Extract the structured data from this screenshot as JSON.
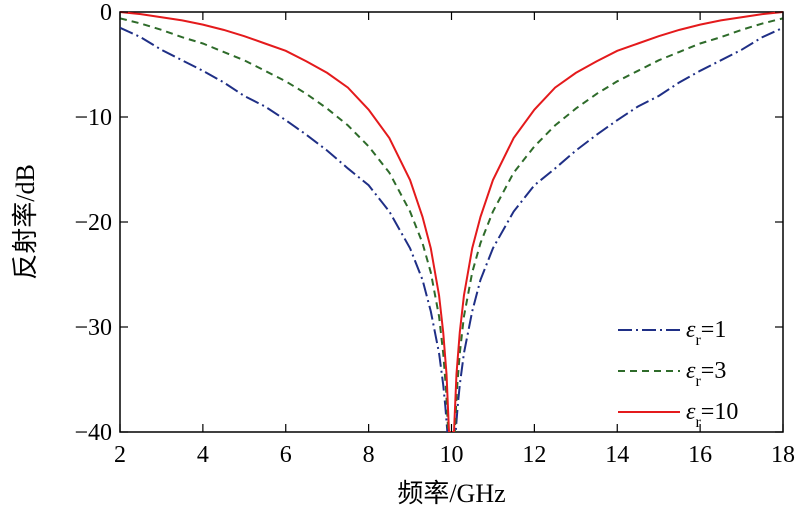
{
  "chart_data": {
    "type": "line",
    "xlabel": "频率/GHz",
    "ylabel": "反射率/dB",
    "xlim": [
      2,
      18
    ],
    "ylim": [
      -40,
      0
    ],
    "xticks": [
      2,
      4,
      6,
      8,
      10,
      12,
      14,
      16,
      18
    ],
    "yticks": [
      0,
      -10,
      -20,
      -30,
      -40
    ],
    "xtick_labels": [
      "2",
      "4",
      "6",
      "8",
      "10",
      "12",
      "14",
      "16",
      "18"
    ],
    "ytick_labels": [
      "0",
      "−10",
      "−20",
      "−30",
      "−40"
    ],
    "legend_position": "bottom-right",
    "series": [
      {
        "name": "εr=1",
        "legend_symbol": "ε",
        "legend_sub": "r",
        "legend_value": "=1",
        "color": "#1f2f86",
        "style": "dash-dot",
        "x": [
          2,
          2.5,
          3,
          3.5,
          4,
          4.5,
          5,
          5.5,
          6,
          6.5,
          7,
          7.5,
          8,
          8.5,
          9,
          9.3,
          9.5,
          9.7,
          9.8,
          9.85,
          9.9,
          10.1,
          10.15,
          10.2,
          10.3,
          10.5,
          10.7,
          11,
          11.5,
          12,
          12.5,
          13,
          13.5,
          14,
          14.5,
          15,
          15.5,
          16,
          16.5,
          17,
          17.5,
          18
        ],
        "y": [
          -1.5,
          -2.4,
          -3.6,
          -4.6,
          -5.6,
          -6.7,
          -8.0,
          -9.0,
          -10.3,
          -11.7,
          -13.2,
          -14.9,
          -16.5,
          -19.0,
          -22.5,
          -25.5,
          -28.5,
          -32.5,
          -35.5,
          -37.5,
          -40,
          -40,
          -37.5,
          -35.5,
          -32.5,
          -28.5,
          -25.5,
          -22.5,
          -19.0,
          -16.5,
          -14.9,
          -13.2,
          -11.7,
          -10.3,
          -9.0,
          -8.0,
          -6.7,
          -5.6,
          -4.6,
          -3.6,
          -2.4,
          -1.5
        ]
      },
      {
        "name": "εr=3",
        "legend_symbol": "ε",
        "legend_sub": "r",
        "legend_value": "=3",
        "color": "#2e6b2a",
        "style": "dashed",
        "x": [
          2,
          2.5,
          3,
          3.5,
          4,
          4.5,
          5,
          5.5,
          6,
          6.5,
          7,
          7.5,
          8,
          8.5,
          9,
          9.3,
          9.5,
          9.7,
          9.8,
          9.87,
          9.92,
          10.08,
          10.13,
          10.2,
          10.3,
          10.5,
          10.7,
          11,
          11.5,
          12,
          12.5,
          13,
          13.5,
          14,
          14.5,
          15,
          15.5,
          16,
          16.5,
          17,
          17.5,
          18
        ],
        "y": [
          -0.6,
          -1.1,
          -1.7,
          -2.4,
          -3.0,
          -3.8,
          -4.6,
          -5.6,
          -6.6,
          -7.8,
          -9.2,
          -10.8,
          -12.8,
          -15.3,
          -19.0,
          -22.0,
          -24.8,
          -29.0,
          -32.5,
          -36.0,
          -40,
          -40,
          -36.0,
          -32.5,
          -29.0,
          -24.8,
          -22.0,
          -19.0,
          -15.3,
          -12.8,
          -10.8,
          -9.2,
          -7.8,
          -6.6,
          -5.6,
          -4.6,
          -3.8,
          -3.0,
          -2.4,
          -1.7,
          -1.1,
          -0.6
        ]
      },
      {
        "name": "εr=10",
        "legend_symbol": "ε",
        "legend_sub": "r",
        "legend_value": "=10",
        "color": "#e41a1c",
        "style": "solid",
        "x": [
          2,
          2.5,
          3,
          3.5,
          4,
          4.5,
          5,
          5.5,
          6,
          6.5,
          7,
          7.5,
          8,
          8.5,
          9,
          9.3,
          9.5,
          9.7,
          9.8,
          9.88,
          9.94,
          10.06,
          10.12,
          10.2,
          10.3,
          10.5,
          10.7,
          11,
          11.5,
          12,
          12.5,
          13,
          13.5,
          14,
          14.5,
          15,
          15.5,
          16,
          16.5,
          17,
          17.5,
          18
        ],
        "y": [
          0,
          -0.2,
          -0.5,
          -0.8,
          -1.2,
          -1.7,
          -2.3,
          -3.0,
          -3.7,
          -4.7,
          -5.8,
          -7.2,
          -9.3,
          -12.0,
          -16.0,
          -19.5,
          -22.5,
          -27.0,
          -30.5,
          -34.5,
          -40,
          -40,
          -34.5,
          -30.5,
          -27.0,
          -22.5,
          -19.5,
          -16.0,
          -12.0,
          -9.3,
          -7.2,
          -5.8,
          -4.7,
          -3.7,
          -3.0,
          -2.3,
          -1.7,
          -1.2,
          -0.8,
          -0.5,
          -0.2,
          0
        ]
      }
    ]
  }
}
